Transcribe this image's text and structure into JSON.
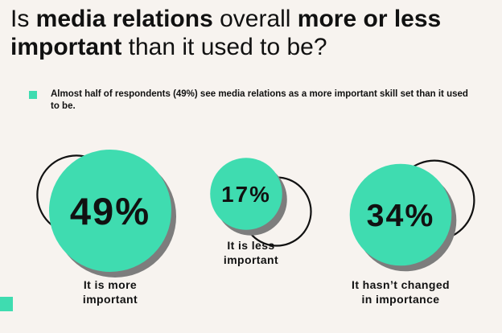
{
  "headline": {
    "part1": "Is ",
    "bold1": "media relations",
    "part2": " overall ",
    "bold2": "more or less important",
    "part3": " than it used to be?"
  },
  "subtitle": "Almost half of respondents (49%) see media relations as a more important skill set than it used to be.",
  "colors": {
    "accent": "#3fdcb0",
    "shadow": "#7d7d7d",
    "background": "#f7f3ef"
  },
  "chart_data": {
    "type": "bubble",
    "unit": "%",
    "categories": [
      "It is more important",
      "It is less important",
      "It hasn’t changed in importance"
    ],
    "values": [
      49,
      17,
      34
    ],
    "value_labels": [
      "49%",
      "17%",
      "34%"
    ],
    "label_lines": [
      [
        "It is more",
        "important"
      ],
      [
        "It is less",
        "important"
      ],
      [
        "It hasn’t changed",
        "in importance"
      ]
    ]
  }
}
